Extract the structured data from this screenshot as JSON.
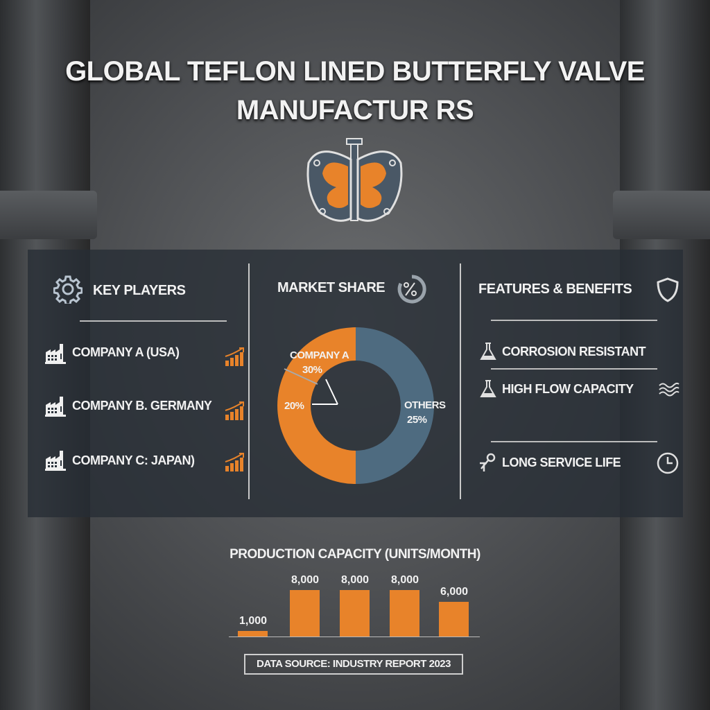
{
  "title": {
    "line1": "GLOBAL TEFLON LINED BUTTERFLY VALVE",
    "line2": "MANUFACTUR RS"
  },
  "logo_icon": "butterfly-valve-icon",
  "colors": {
    "accent": "#e8832a",
    "blue": "#4e6b80",
    "panel": "#262d35"
  },
  "key_players": {
    "heading": "KEY PLAYERS",
    "icon": "gear-icon",
    "items": [
      {
        "label": "COMPANY A (USA)",
        "icon": "factory-icon",
        "trend_icon": "growth-chart-icon"
      },
      {
        "label": "COMPANY B. GERMANY",
        "icon": "factory-icon",
        "trend_icon": "growth-chart-icon"
      },
      {
        "label": "COMPANY C: JAPAN)",
        "icon": "factory-icon",
        "trend_icon": "growth-chart-icon"
      }
    ]
  },
  "market_share": {
    "heading": "MARKET SHARE",
    "icon": "percent-cycle-icon"
  },
  "features": {
    "heading": "FEATURES & BENEFITS",
    "icon": "shield-icon",
    "items": [
      {
        "label": "CORROSION RESISTANT",
        "icon": "flask-icon"
      },
      {
        "label": "HIGH FLOW CAPACITY",
        "icon": "flask-icon",
        "trail_icon": "waves-icon"
      },
      {
        "label": "LONG SERVICE LIFE",
        "icon": "wrench-icon",
        "trail_icon": "clock-icon"
      }
    ]
  },
  "chart_data": [
    {
      "type": "pie",
      "donut": true,
      "slices": [
        {
          "label": "COMPANY A",
          "value_label": "30%",
          "color": "#e8832a"
        },
        {
          "label": "",
          "value_label": "20%",
          "color": "#e8832a"
        },
        {
          "label": "OTHERS",
          "value_label": "25%",
          "color": "#4e6b80"
        }
      ]
    },
    {
      "type": "bar",
      "title": "PRODUCTION CAPACITY (UNITS/MONTH)",
      "values": [
        1000,
        8000,
        8000,
        8000,
        6000
      ],
      "labels": [
        "1,000",
        "8,000",
        "8,000",
        "8,000",
        "6,000"
      ]
    }
  ],
  "footer": {
    "source": "DATA SOURCE: INDUSTRY REPORT 2023"
  }
}
